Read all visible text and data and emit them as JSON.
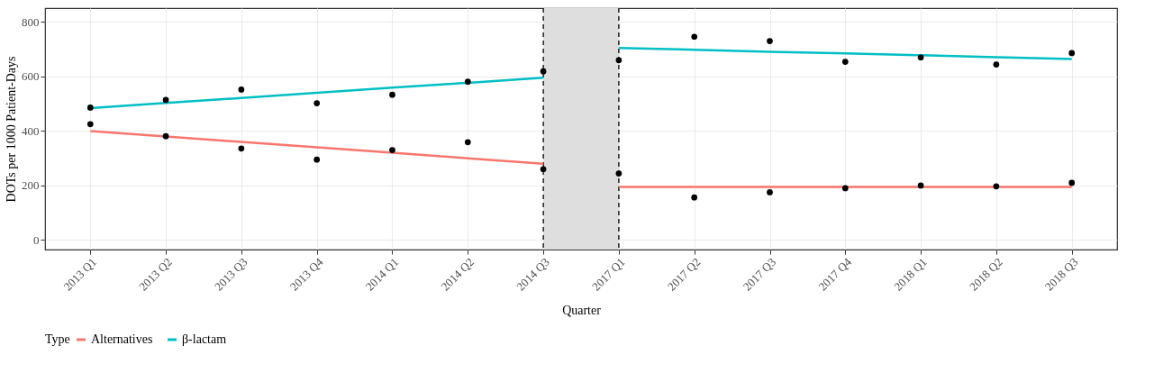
{
  "chart_data": {
    "type": "line",
    "xlabel": "Quarter",
    "ylabel": "DOTs per 1000 Patient-Days",
    "legend_title": "Type",
    "categories": [
      "2013 Q1",
      "2013 Q2",
      "2013 Q3",
      "2013 Q4",
      "2014 Q1",
      "2014 Q2",
      "2014 Q3",
      "2017 Q1",
      "2017 Q2",
      "2017 Q3",
      "2017 Q4",
      "2018 Q1",
      "2018 Q2",
      "2018 Q3"
    ],
    "series": [
      {
        "name": "Alternatives",
        "color": "#f8766d",
        "values": [
          400,
          380,
          360,
          340,
          320,
          300,
          280,
          null,
          null,
          null,
          null,
          null,
          null,
          null
        ]
      },
      {
        "color": "#f8766d",
        "values": [
          null,
          null,
          null,
          null,
          null,
          null,
          null,
          195,
          195,
          195,
          195,
          195,
          195,
          195
        ]
      },
      {
        "name": "β-lactam",
        "color": "#00bfc4",
        "values": [
          484,
          503,
          521,
          540,
          559,
          577,
          596,
          null,
          null,
          null,
          null,
          null,
          null,
          null
        ]
      },
      {
        "color": "#00bfc4",
        "values": [
          null,
          null,
          null,
          null,
          null,
          null,
          null,
          705,
          698,
          691,
          685,
          678,
          671,
          664
        ]
      },
      {
        "type": "scatter",
        "marker": "circle",
        "color": "#000000",
        "values": [
          486,
          514,
          552,
          502,
          533,
          581,
          619,
          660,
          746,
          730,
          654,
          670,
          644,
          686
        ]
      },
      {
        "type": "scatter",
        "marker": "circle",
        "color": "#000000",
        "values": [
          425,
          381,
          336,
          295,
          330,
          359,
          260,
          244,
          156,
          175,
          190,
          200,
          197,
          210
        ]
      }
    ],
    "bands": [
      {
        "axis": "x",
        "from": "2014 Q3",
        "to": "2017 Q1",
        "color": "#dedede"
      }
    ],
    "ref_lines": [
      {
        "axis": "x",
        "value": "2014 Q3",
        "line_style": "dashed"
      },
      {
        "axis": "x",
        "value": "2017 Q1",
        "line_style": "dashed"
      }
    ],
    "ylim": [
      -35,
      851
    ],
    "yticks": [
      0,
      200,
      400,
      600,
      800
    ],
    "grid": true,
    "legend": "bottom"
  }
}
